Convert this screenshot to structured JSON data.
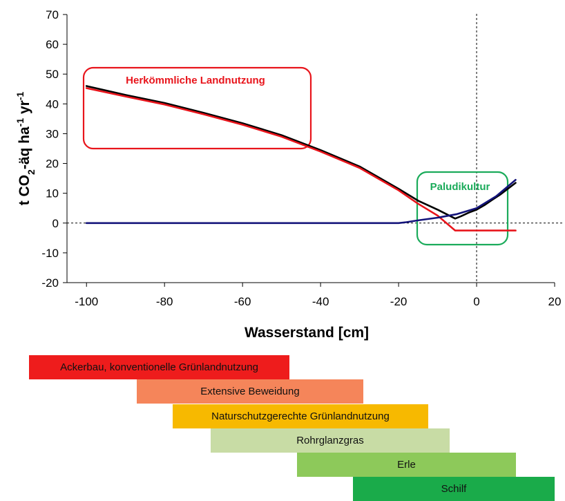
{
  "chart_data": {
    "type": "line",
    "xlabel": "Wasserstand [cm]",
    "ylabel": {
      "p1": "t CO",
      "sub": "2",
      "p2": "-äq ha",
      "sup1": "-1",
      "p3": " yr",
      "sup2": "-1"
    },
    "xlim": [
      -105,
      20
    ],
    "ylim": [
      -20,
      70
    ],
    "xticks": [
      -100,
      -80,
      -60,
      -40,
      -20,
      0,
      20
    ],
    "yticks": [
      -20,
      -10,
      0,
      10,
      20,
      30,
      40,
      50,
      60,
      70
    ],
    "reference_lines": {
      "x": 0,
      "y": 0
    },
    "series": [
      {
        "color": "#000000",
        "x": [
          -100,
          -90,
          -80,
          -70,
          -60,
          -50,
          -40,
          -30,
          -20,
          -15,
          -10,
          -5.5,
          -4,
          -2,
          0,
          2,
          4,
          6,
          8,
          10
        ],
        "y": [
          46,
          43,
          40.3,
          37,
          33.5,
          29.5,
          24.5,
          19,
          11.5,
          7.5,
          4.5,
          1.5,
          2.3,
          3.5,
          4.5,
          6,
          7.8,
          9.5,
          11.5,
          13.5
        ]
      },
      {
        "color": "#e8141b",
        "x": [
          -100,
          -90,
          -80,
          -70,
          -60,
          -50,
          -40,
          -30,
          -20,
          -15,
          -10,
          -5.5,
          0,
          5,
          10
        ],
        "y": [
          45.3,
          42.5,
          39.8,
          36.5,
          33,
          29,
          24,
          18.5,
          11,
          6.5,
          2.5,
          -2.5,
          -2.5,
          -2.5,
          -2.5
        ]
      },
      {
        "color": "#13137a",
        "x": [
          -100,
          -80,
          -60,
          -40,
          -20,
          -18,
          -15,
          -10,
          -5,
          0,
          5,
          10
        ],
        "y": [
          0,
          0,
          0,
          0,
          0,
          0.3,
          0.9,
          1.8,
          3,
          5,
          9,
          14.5
        ]
      }
    ],
    "annotations": [
      {
        "text": "Herkömmliche Landnutzung",
        "color": "#e8141b"
      },
      {
        "text": "Paludikultur",
        "color": "#1aab5a"
      }
    ],
    "bars": [
      {
        "label": "Ackerbau, konventionelle Grünlandnutzung",
        "color": "#ee1c1c"
      },
      {
        "label": "Extensive Beweidung",
        "color": "#f5855a"
      },
      {
        "label": "Naturschutzgerechte Grünlandnutzung",
        "color": "#f7b900"
      },
      {
        "label": "Rohrglanzgras",
        "color": "#c8dca5"
      },
      {
        "label": "Erle",
        "color": "#8dc95a"
      },
      {
        "label": "Schilf",
        "color": "#1aab4a"
      }
    ]
  }
}
